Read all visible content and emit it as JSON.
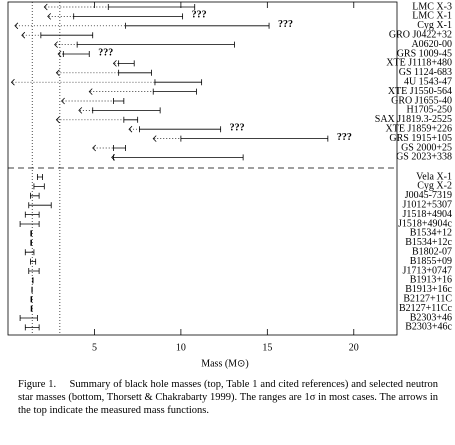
{
  "chart_data": {
    "type": "range",
    "xlabel": "Mass (M⊙)",
    "xlim": [
      0,
      22.5
    ],
    "xticks": [
      5,
      10,
      15,
      20
    ],
    "vlines": [
      1.4,
      3
    ],
    "black_holes": {
      "categories": [
        "LMC X-3",
        "LMC X-1",
        "Cyg X-1",
        "GRO J0422+32",
        "A0620-00",
        "GRS 1009-45",
        "XTE J1118+480",
        "GS 1124-683",
        "4U 1543-47",
        "XTE J1550-564",
        "GRO J1655-40",
        "H1705-250",
        "SAX J1819.3-2525",
        "XTE J1859+226",
        "GRS 1915+105",
        "GS 2000+25",
        "GS 2023+338"
      ],
      "mass_function": [
        2.1,
        2.3,
        0.4,
        0.8,
        2.7,
        2.9,
        6.1,
        2.8,
        0.2,
        4.7,
        3.1,
        4.1,
        2.8,
        7.0,
        8.4,
        4.9,
        6.0
      ],
      "low": [
        5.8,
        3.8,
        6.8,
        1.9,
        4.0,
        3.2,
        6.4,
        6.4,
        8.5,
        8.4,
        6.1,
        4.9,
        6.7,
        7.6,
        10.0,
        6.1,
        6.1
      ],
      "high": [
        10.8,
        10.1,
        15.1,
        4.9,
        13.1,
        4.7,
        7.3,
        8.3,
        11.2,
        10.9,
        6.7,
        8.8,
        7.5,
        12.3,
        18.5,
        6.8,
        13.6
      ],
      "notes": [
        null,
        "???",
        "???",
        null,
        null,
        "???",
        null,
        null,
        null,
        null,
        null,
        null,
        null,
        "???",
        "???",
        null,
        null
      ]
    },
    "neutron_stars": {
      "categories": [
        "Vela X-1",
        "Cyg X-2",
        "J0045-7319",
        "J1012+5307",
        "J1518+4904",
        "J1518+4904c",
        "B1534+12",
        "B1534+12c",
        "B1802-07",
        "B1855+09",
        "J1713+0747",
        "B1913+16",
        "B1913+16c",
        "B2127+11C",
        "B2127+11Cc",
        "B2303+46",
        "B2303+46c"
      ],
      "low": [
        1.7,
        1.5,
        1.3,
        1.2,
        1.0,
        0.7,
        1.32,
        1.32,
        1.0,
        1.3,
        1.2,
        1.43,
        1.38,
        1.33,
        1.34,
        0.7,
        1.0
      ],
      "high": [
        2.0,
        2.1,
        1.8,
        2.5,
        1.8,
        1.8,
        1.36,
        1.36,
        1.5,
        1.6,
        1.8,
        1.45,
        1.4,
        1.37,
        1.38,
        1.7,
        1.8
      ]
    },
    "caption": "Figure 1.  Summary of black hole masses (top, Table 1 and cited references) and selected neutron star masses (bottom, Thorsett & Chakrabarty 1999). The ranges are 1σ in most cases. The arrows in the top indicate the measured mass functions."
  }
}
